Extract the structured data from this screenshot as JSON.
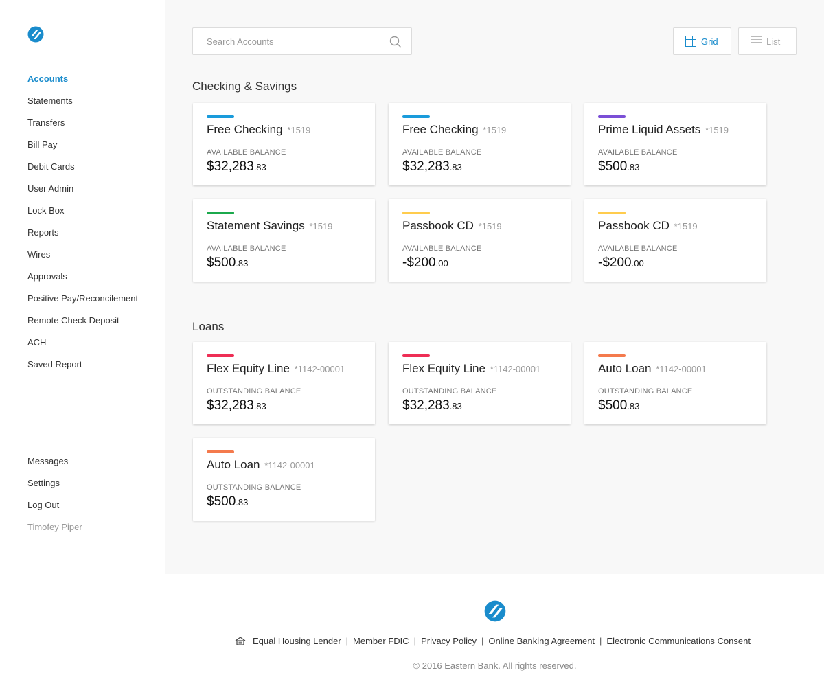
{
  "sidebar": {
    "logo_icon": "eastern-bank-logo",
    "nav": [
      {
        "label": "Accounts",
        "active": true
      },
      {
        "label": "Statements"
      },
      {
        "label": "Transfers"
      },
      {
        "label": "Bill Pay"
      },
      {
        "label": "Debit Cards"
      },
      {
        "label": "User Admin"
      },
      {
        "label": "Lock Box"
      },
      {
        "label": "Reports"
      },
      {
        "label": "Wires"
      },
      {
        "label": "Approvals"
      },
      {
        "label": "Positive Pay/Reconcilement"
      },
      {
        "label": "Remote Check Deposit"
      },
      {
        "label": "ACH"
      },
      {
        "label": "Saved Report"
      }
    ],
    "bottom_nav": [
      "Messages",
      "Settings",
      "Log Out"
    ],
    "user_name": "Timofey Piper"
  },
  "search": {
    "placeholder": "Search Accounts",
    "value": "",
    "icon": "search-icon"
  },
  "view_toggle": {
    "grid_label": "Grid",
    "list_label": "List",
    "selected": "Grid"
  },
  "colors": {
    "accent": "#1a8ccc",
    "blue_bar": "#1a9bdb",
    "purple_bar": "#7b4fd6",
    "green_bar": "#1ba94c",
    "yellow_bar": "#ffcc4d",
    "red_bar": "#ee2e55",
    "orange_bar": "#f47a4d"
  },
  "sections": {
    "checking": {
      "title": "Checking & Savings",
      "cards": [
        {
          "name": "Free Checking",
          "acct": "*1519",
          "label": "AVAILABLE BALANCE",
          "dollars": "$32,283",
          "cents": ".83",
          "color": "blue_bar"
        },
        {
          "name": "Free Checking",
          "acct": "*1519",
          "label": "AVAILABLE BALANCE",
          "dollars": "$32,283",
          "cents": ".83",
          "color": "blue_bar"
        },
        {
          "name": "Prime Liquid Assets",
          "acct": "*1519",
          "label": "AVAILABLE BALANCE",
          "dollars": "$500",
          "cents": ".83",
          "color": "purple_bar"
        },
        {
          "name": "Statement Savings",
          "acct": "*1519",
          "label": "AVAILABLE BALANCE",
          "dollars": "$500",
          "cents": ".83",
          "color": "green_bar"
        },
        {
          "name": "Passbook CD",
          "acct": "*1519",
          "label": "AVAILABLE BALANCE",
          "dollars": "-$200",
          "cents": ".00",
          "color": "yellow_bar"
        },
        {
          "name": "Passbook CD",
          "acct": "*1519",
          "label": "AVAILABLE BALANCE",
          "dollars": "-$200",
          "cents": ".00",
          "color": "yellow_bar"
        }
      ]
    },
    "loans": {
      "title": "Loans",
      "cards": [
        {
          "name": "Flex Equity Line",
          "acct": "*1142-00001",
          "label": "OUTSTANDING BALANCE",
          "dollars": "$32,283",
          "cents": ".83",
          "color": "red_bar"
        },
        {
          "name": "Flex Equity Line",
          "acct": "*1142-00001",
          "label": "OUTSTANDING BALANCE",
          "dollars": "$32,283",
          "cents": ".83",
          "color": "red_bar"
        },
        {
          "name": "Auto Loan",
          "acct": "*1142-00001",
          "label": "OUTSTANDING BALANCE",
          "dollars": "$500",
          "cents": ".83",
          "color": "orange_bar"
        },
        {
          "name": "Auto Loan",
          "acct": "*1142-00001",
          "label": "OUTSTANDING BALANCE",
          "dollars": "$500",
          "cents": ".83",
          "color": "orange_bar"
        }
      ]
    }
  },
  "footer": {
    "housing_icon": "equal-housing-icon",
    "links": [
      "Equal Housing Lender",
      "Member FDIC",
      "Privacy Policy",
      "Online Banking Agreement",
      "Electronic Communications Consent"
    ],
    "copyright": "© 2016 Eastern Bank. All rights reserved."
  }
}
